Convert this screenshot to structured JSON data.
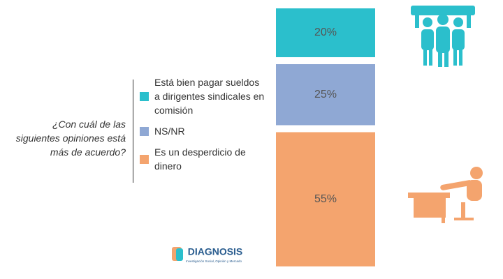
{
  "chart_data": {
    "type": "stacked_bar",
    "question": "¿Con cuál de las siguientes opiniones está más de acuerdo?",
    "series": [
      {
        "name": "Está bien pagar sueldos a dirigentes sindicales en comisión",
        "color": "#2bbfcc",
        "values": [
          20
        ],
        "value_labels": [
          "20%"
        ]
      },
      {
        "name": "NS/NR",
        "color": "#8fa8d4",
        "values": [
          25
        ],
        "value_labels": [
          "25%"
        ]
      },
      {
        "name": "Es un desperdicio de dinero",
        "color": "#f4a46e",
        "values": [
          55
        ],
        "value_labels": [
          "55%"
        ]
      }
    ]
  },
  "logo": {
    "name": "DIAGNOSIS",
    "tagline": "Investigación Social, Opinión y Mercado"
  }
}
